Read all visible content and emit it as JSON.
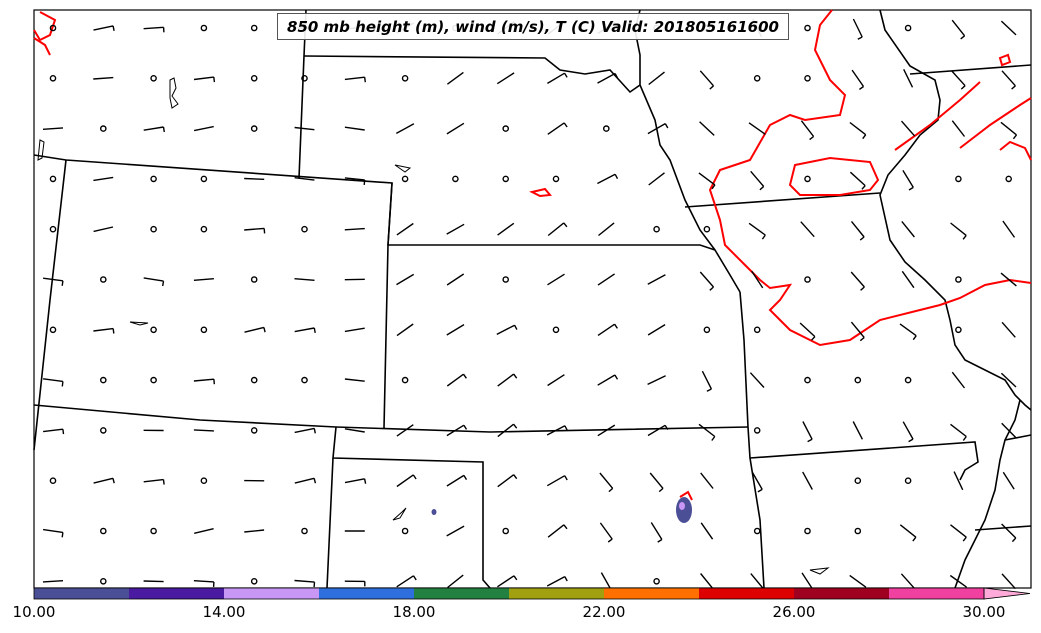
{
  "title": "850 mb height (m), wind (m/s), T (C) Valid: 201805161600",
  "colorbar": {
    "ticks": [
      "10.00",
      "14.00",
      "18.00",
      "22.00",
      "26.00",
      "30.00"
    ],
    "min": 10,
    "max": 30,
    "bins": [
      {
        "from": 10,
        "to": 12,
        "color": "#4b4f96"
      },
      {
        "from": 12,
        "to": 14,
        "color": "#4a1aa0"
      },
      {
        "from": 14,
        "to": 16,
        "color": "#c896f5"
      },
      {
        "from": 16,
        "to": 18,
        "color": "#2f6fdd"
      },
      {
        "from": 18,
        "to": 20,
        "color": "#228040"
      },
      {
        "from": 20,
        "to": 22,
        "color": "#a0a010"
      },
      {
        "from": 22,
        "to": 24,
        "color": "#ff7000"
      },
      {
        "from": 24,
        "to": 26,
        "color": "#dd0000"
      },
      {
        "from": 26,
        "to": 28,
        "color": "#a00020"
      },
      {
        "from": 28,
        "to": 30,
        "color": "#f040a0"
      }
    ],
    "extend_max_color": "#ffaad8"
  },
  "temperature_contour_color": "#ff0000",
  "boundary_color": "#000000"
}
